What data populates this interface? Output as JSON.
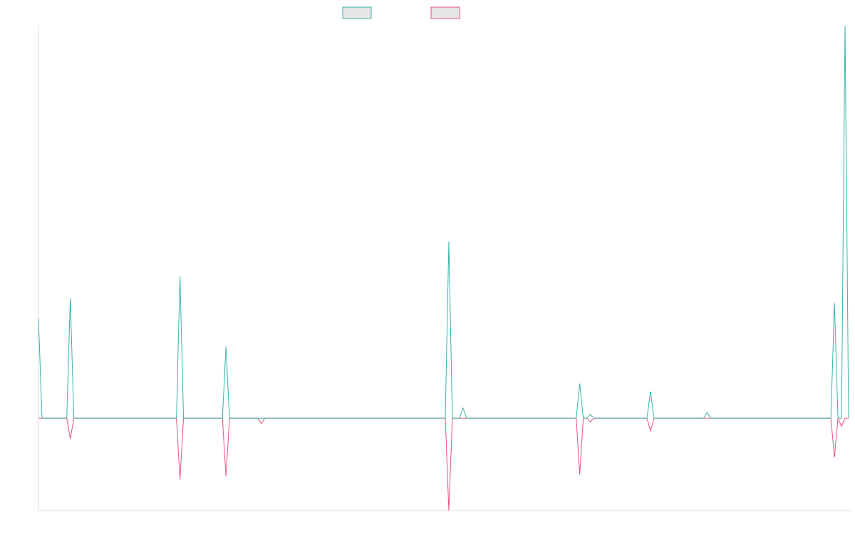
{
  "chart_data": {
    "type": "line",
    "title": "",
    "xlabel": "",
    "ylabel": "",
    "grid": false,
    "legend_position": "top-center",
    "ylim": [
      -200,
      850
    ],
    "n_points": 229,
    "series": [
      {
        "color": "#37b3a8",
        "points": [
          [
            0,
            215
          ],
          [
            1,
            0
          ],
          [
            8,
            0
          ],
          [
            9,
            260
          ],
          [
            10,
            0
          ],
          [
            39,
            0
          ],
          [
            40,
            307
          ],
          [
            41,
            0
          ],
          [
            52,
            0
          ],
          [
            53,
            155
          ],
          [
            54,
            0
          ],
          [
            115,
            0
          ],
          [
            116,
            382
          ],
          [
            117,
            0
          ],
          [
            119,
            0
          ],
          [
            120,
            22
          ],
          [
            121,
            0
          ],
          [
            152,
            0
          ],
          [
            153,
            75
          ],
          [
            154,
            0
          ],
          [
            155,
            0
          ],
          [
            156,
            8
          ],
          [
            157,
            0
          ],
          [
            172,
            0
          ],
          [
            173,
            58
          ],
          [
            174,
            0
          ],
          [
            188,
            0
          ],
          [
            189,
            12
          ],
          [
            190,
            0
          ],
          [
            224,
            0
          ],
          [
            225,
            250
          ],
          [
            226,
            0
          ],
          [
            227,
            0
          ],
          [
            228,
            850
          ],
          [
            229,
            0
          ]
        ]
      },
      {
        "color": "#e8537a",
        "points": [
          [
            0,
            0
          ],
          [
            8,
            0
          ],
          [
            9,
            -45
          ],
          [
            10,
            0
          ],
          [
            39,
            0
          ],
          [
            40,
            -133
          ],
          [
            41,
            0
          ],
          [
            52,
            0
          ],
          [
            53,
            -126
          ],
          [
            54,
            0
          ],
          [
            62,
            0
          ],
          [
            63,
            -12
          ],
          [
            64,
            0
          ],
          [
            115,
            0
          ],
          [
            116,
            -200
          ],
          [
            117,
            0
          ],
          [
            152,
            0
          ],
          [
            153,
            -122
          ],
          [
            154,
            0
          ],
          [
            155,
            0
          ],
          [
            156,
            -8
          ],
          [
            157,
            0
          ],
          [
            172,
            0
          ],
          [
            173,
            -28
          ],
          [
            174,
            0
          ],
          [
            224,
            0
          ],
          [
            225,
            -85
          ],
          [
            226,
            0
          ],
          [
            227,
            -18
          ],
          [
            228,
            0
          ],
          [
            229,
            0
          ]
        ]
      }
    ]
  }
}
